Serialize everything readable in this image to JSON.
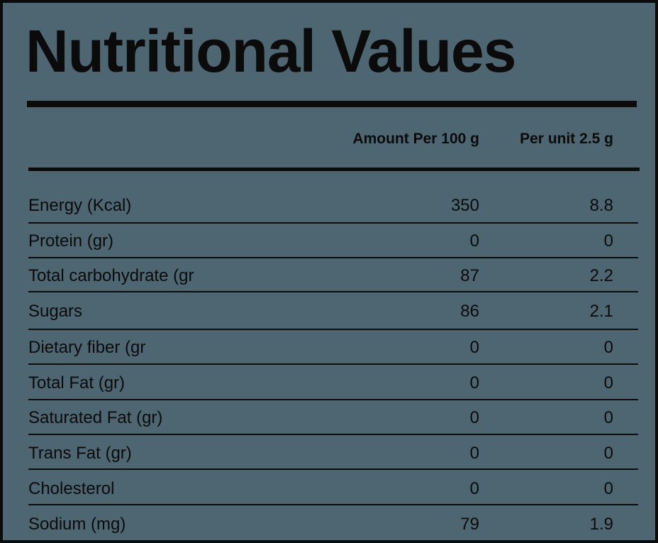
{
  "title": "Nutritional Values",
  "columns": {
    "per_100g": "Amount Per 100 g",
    "per_unit": "Per unit 2.5 g"
  },
  "rows": [
    {
      "label": "Energy (Kcal)",
      "per_100g": "350",
      "per_unit": "8.8"
    },
    {
      "label": "Protein (gr)",
      "per_100g": "0",
      "per_unit": "0"
    },
    {
      "label": "Total carbohydrate (gr",
      "per_100g": "87",
      "per_unit": "2.2"
    },
    {
      "label": "Sugars",
      "per_100g": "86",
      "per_unit": "2.1"
    },
    {
      "label": "Dietary fiber (gr",
      "per_100g": "0",
      "per_unit": "0"
    },
    {
      "label": "Total Fat (gr)",
      "per_100g": "0",
      "per_unit": "0"
    },
    {
      "label": "Saturated Fat (gr)",
      "per_100g": "0",
      "per_unit": "0"
    },
    {
      "label": "Trans Fat (gr)",
      "per_100g": "0",
      "per_unit": "0"
    },
    {
      "label": "Cholesterol",
      "per_100g": "0",
      "per_unit": "0"
    },
    {
      "label": "Sodium (mg)",
      "per_100g": "79",
      "per_unit": "1.9"
    }
  ]
}
